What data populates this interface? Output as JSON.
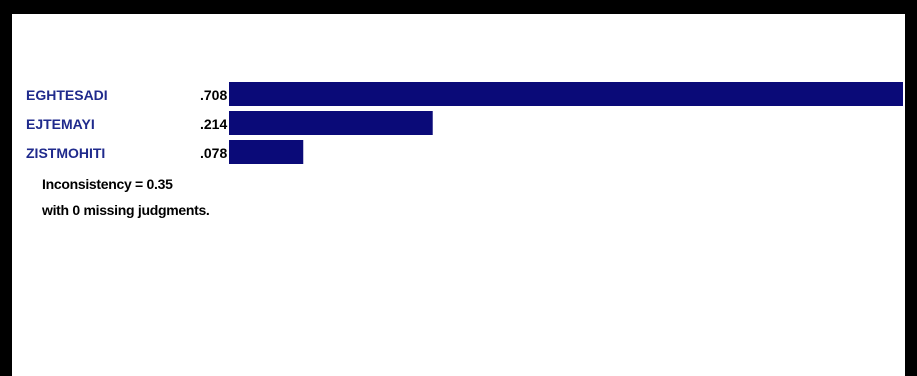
{
  "chart_data": {
    "type": "bar",
    "orientation": "horizontal",
    "categories": [
      "EGHTESADI",
      "EJTEMAYI",
      "ZISTMOHITI"
    ],
    "values": [
      0.708,
      0.214,
      0.078
    ],
    "value_labels": [
      ".708",
      ".214",
      ".078"
    ],
    "xlim": [
      0,
      0.708
    ],
    "grid": false,
    "legend": "none",
    "colors": {
      "bar": "#0a0a78",
      "category_text": "#1f2a8c",
      "value_text": "#000000"
    }
  },
  "summary": {
    "inconsistency": "Inconsistency = 0.35",
    "missing": "with 0  missing judgments."
  }
}
